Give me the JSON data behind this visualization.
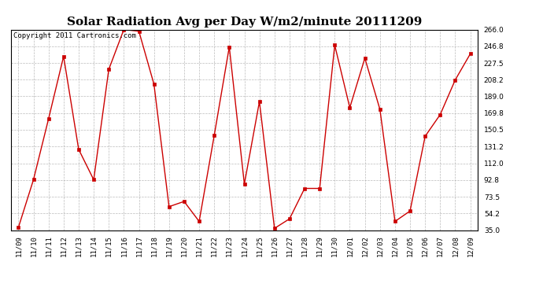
{
  "title": "Solar Radiation Avg per Day W/m2/minute 20111209",
  "copyright": "Copyright 2011 Cartronics.com",
  "dates": [
    "11/09",
    "11/10",
    "11/11",
    "11/12",
    "11/13",
    "11/14",
    "11/15",
    "11/16",
    "11/17",
    "11/18",
    "11/19",
    "11/20",
    "11/21",
    "11/22",
    "11/23",
    "11/24",
    "11/25",
    "11/26",
    "11/27",
    "11/28",
    "11/29",
    "11/30",
    "12/01",
    "12/02",
    "12/03",
    "12/04",
    "12/05",
    "12/06",
    "12/07",
    "12/08",
    "12/09"
  ],
  "values": [
    38,
    93,
    163,
    235,
    128,
    93,
    220,
    266,
    264,
    203,
    62,
    68,
    45,
    144,
    246,
    88,
    183,
    37,
    48,
    83,
    83,
    248,
    176,
    233,
    174,
    45,
    57,
    143,
    168,
    208,
    238
  ],
  "ylim": [
    35.0,
    266.0
  ],
  "yticks": [
    35.0,
    54.2,
    73.5,
    92.8,
    112.0,
    131.2,
    150.5,
    169.8,
    189.0,
    208.2,
    227.5,
    246.8,
    266.0
  ],
  "line_color": "#cc0000",
  "marker": "s",
  "marker_size": 2.5,
  "background_color": "#ffffff",
  "grid_color": "#aaaaaa",
  "title_fontsize": 11,
  "tick_fontsize": 6.5,
  "copyright_fontsize": 6.5
}
